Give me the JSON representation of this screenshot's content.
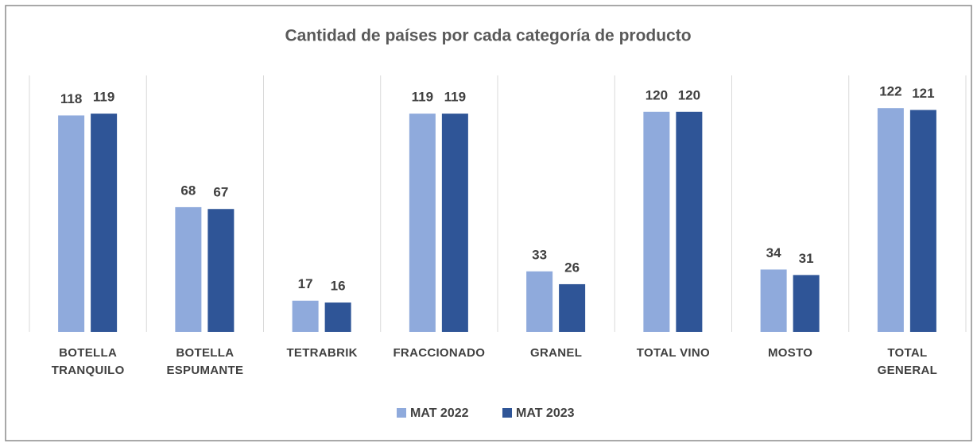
{
  "chart_data": {
    "type": "bar",
    "title": "Cantidad de países por cada categoría de producto",
    "categories": [
      "BOTELLA TRANQUILO",
      "BOTELLA ESPUMANTE",
      "TETRABRIK",
      "FRACCIONADO",
      "GRANEL",
      "TOTAL VINO",
      "MOSTO",
      "TOTAL GENERAL"
    ],
    "series": [
      {
        "name": "MAT 2022",
        "color": "#8faadc",
        "values": [
          118,
          68,
          17,
          119,
          33,
          120,
          34,
          122
        ]
      },
      {
        "name": "MAT 2023",
        "color": "#2f5597",
        "values": [
          119,
          67,
          16,
          119,
          26,
          120,
          31,
          121
        ]
      }
    ],
    "grid": true,
    "legend": "bottom"
  }
}
